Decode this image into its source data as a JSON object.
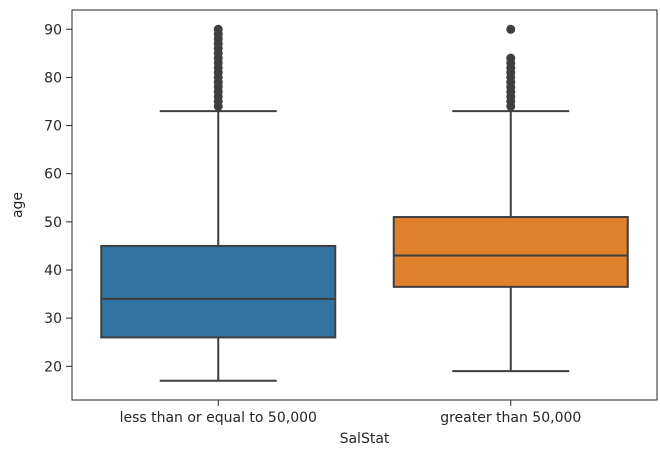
{
  "chart_data": {
    "type": "boxplot",
    "xlabel": "SalStat",
    "ylabel": "age",
    "ylim": [
      13,
      94
    ],
    "yticks": [
      20,
      30,
      40,
      50,
      60,
      70,
      80,
      90
    ],
    "grid": false,
    "categories": [
      "less than or equal to 50,000",
      "greater than 50,000"
    ],
    "boxes": [
      {
        "category": "less than or equal to 50,000",
        "color": "#3274a1",
        "whisker_low": 17,
        "q1": 26,
        "median": 34,
        "q3": 45,
        "whisker_high": 73,
        "outliers": [
          74,
          75,
          76,
          77,
          78,
          79,
          80,
          81,
          82,
          83,
          84,
          85,
          86,
          87,
          88,
          89,
          90
        ]
      },
      {
        "category": "greater than 50,000",
        "color": "#e1812c",
        "whisker_low": 19,
        "q1": 36.5,
        "median": 43,
        "q3": 51,
        "whisker_high": 73,
        "outliers": [
          74,
          75,
          76,
          77,
          78,
          79,
          80,
          81,
          82,
          83,
          84,
          90
        ]
      }
    ]
  }
}
